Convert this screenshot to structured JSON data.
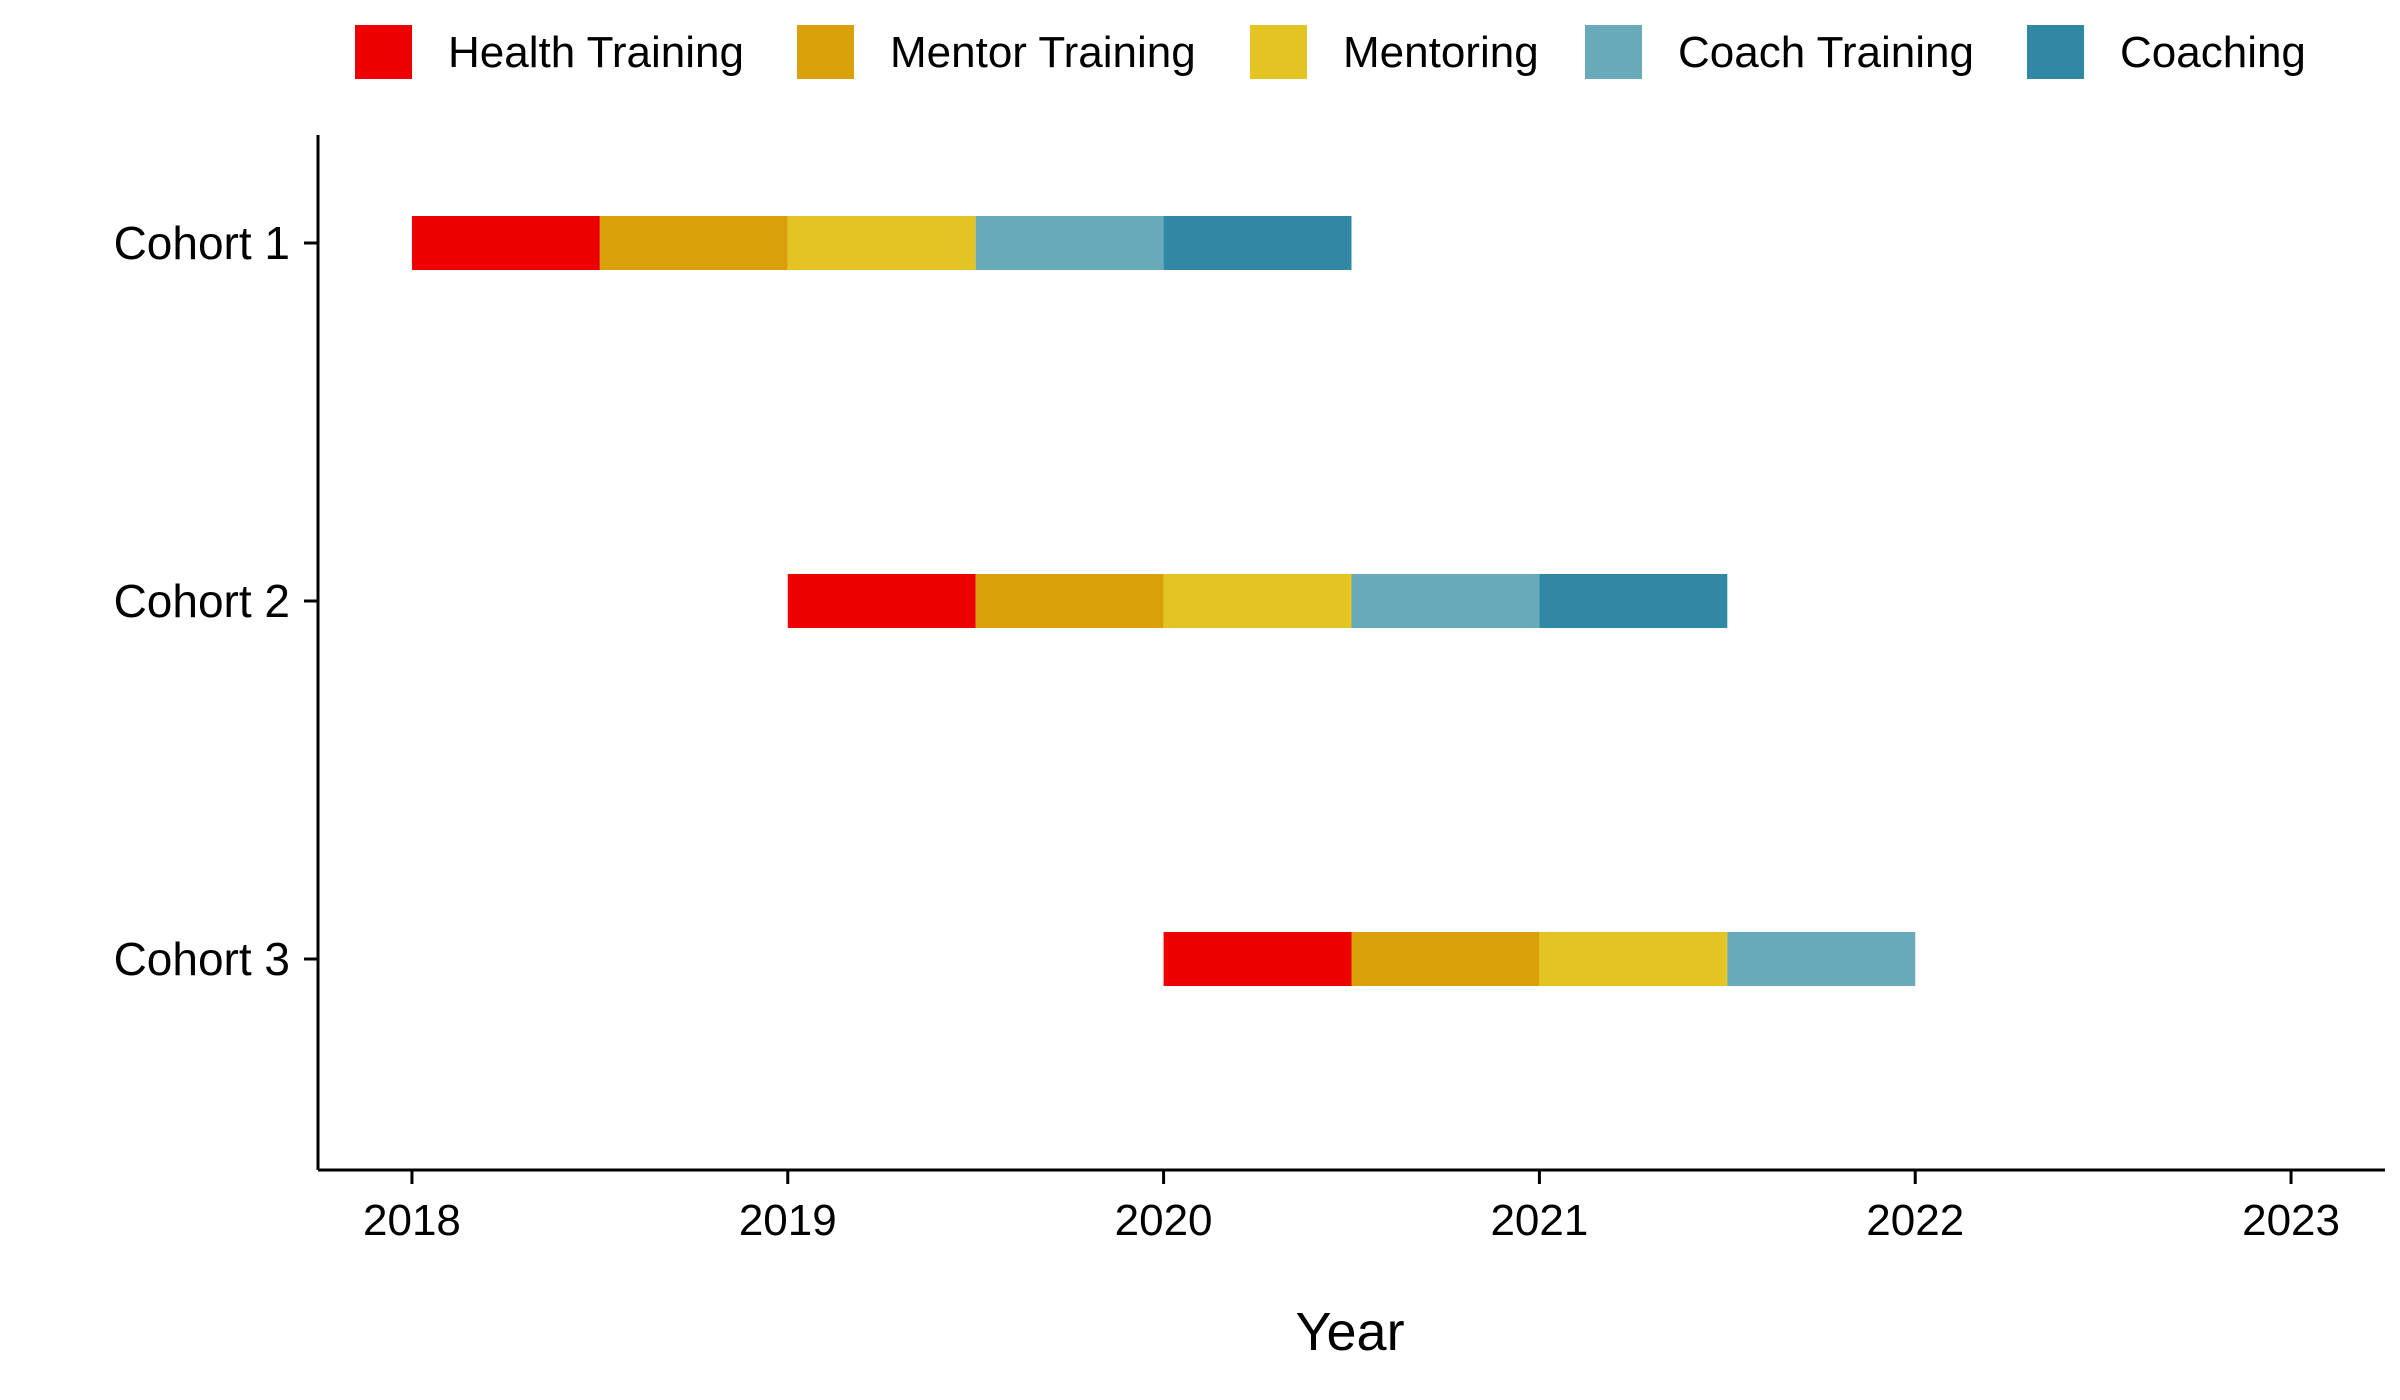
{
  "chart_data": {
    "type": "gantt",
    "title": "",
    "xlabel": "Year",
    "ylabel": "",
    "xlim": [
      2017.75,
      2023.25
    ],
    "xticks": [
      "2018",
      "2019",
      "2020",
      "2021",
      "2022",
      "2023"
    ],
    "categories": [
      "Cohort 1",
      "Cohort 2",
      "Cohort 3"
    ],
    "legend": {
      "position": "top"
    },
    "grid": false,
    "series": [
      {
        "name": "Health Training",
        "color": "#EE0000",
        "ranges": [
          [
            2018.0,
            2018.5
          ],
          [
            2019.0,
            2019.5
          ],
          [
            2020.0,
            2020.5
          ]
        ]
      },
      {
        "name": "Mentor Training",
        "color": "#D9A009",
        "ranges": [
          [
            2018.5,
            2019.0
          ],
          [
            2019.5,
            2020.0
          ],
          [
            2020.5,
            2021.0
          ]
        ]
      },
      {
        "name": "Mentoring",
        "color": "#E4C422",
        "ranges": [
          [
            2019.0,
            2019.5
          ],
          [
            2020.0,
            2020.5
          ],
          [
            2021.0,
            2021.5
          ]
        ]
      },
      {
        "name": "Coach Training",
        "color": "#67AAB9",
        "ranges": [
          [
            2019.5,
            2020.0
          ],
          [
            2020.5,
            2021.0
          ],
          [
            2021.5,
            2022.0
          ]
        ]
      },
      {
        "name": "Coaching",
        "color": "#3188A5",
        "ranges": [
          [
            2020.0,
            2020.5
          ],
          [
            2021.0,
            2021.5
          ],
          null
        ]
      }
    ]
  }
}
